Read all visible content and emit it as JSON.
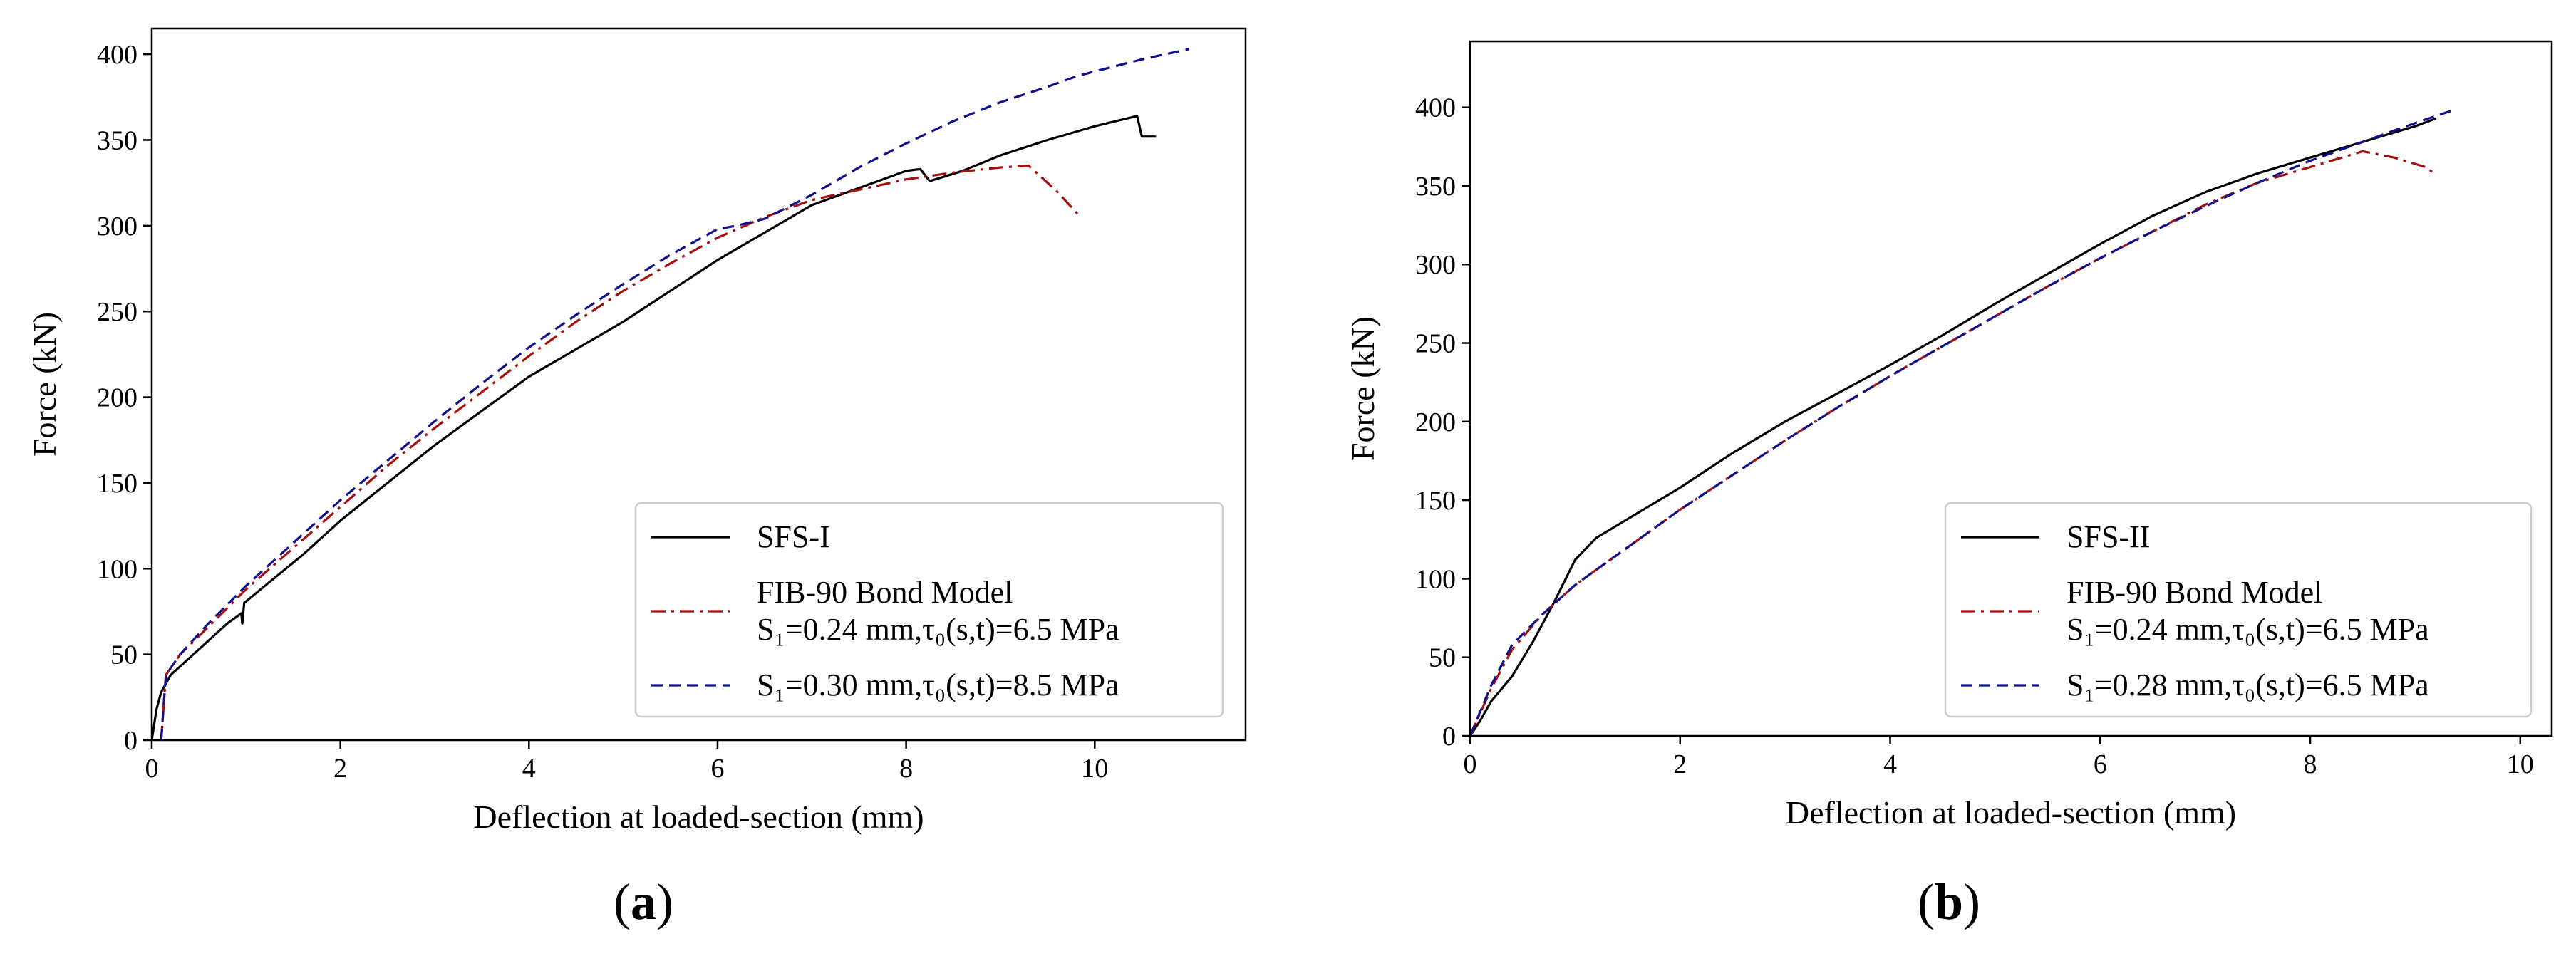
{
  "chart_data": [
    {
      "type": "line",
      "panel_label": "a",
      "xlabel": "Deflection at loaded-section (mm)",
      "ylabel": "Force (kN)",
      "xlim": [
        0,
        11.6
      ],
      "ylim": [
        0,
        415
      ],
      "xticks": [
        0,
        2,
        4,
        6,
        8,
        10
      ],
      "yticks": [
        0,
        50,
        100,
        150,
        200,
        250,
        300,
        350,
        400
      ],
      "legend_position": "lower-right",
      "series": [
        {
          "name": "SFS-I",
          "color": "#000000",
          "style": "solid",
          "points": [
            [
              0,
              0
            ],
            [
              0.05,
              18
            ],
            [
              0.1,
              28
            ],
            [
              0.2,
              38
            ],
            [
              0.4,
              48
            ],
            [
              0.6,
              58
            ],
            [
              0.8,
              68
            ],
            [
              0.95,
              74
            ],
            [
              0.96,
              68
            ],
            [
              0.98,
              80
            ],
            [
              1.2,
              90
            ],
            [
              1.6,
              108
            ],
            [
              2.0,
              128
            ],
            [
              2.5,
              150
            ],
            [
              3.0,
              172
            ],
            [
              3.5,
              192
            ],
            [
              4.0,
              212
            ],
            [
              4.5,
              228
            ],
            [
              5.0,
              244
            ],
            [
              5.5,
              262
            ],
            [
              6.0,
              280
            ],
            [
              6.5,
              296
            ],
            [
              7.0,
              312
            ],
            [
              7.5,
              322
            ],
            [
              8.0,
              332
            ],
            [
              8.15,
              333
            ],
            [
              8.25,
              326
            ],
            [
              8.6,
              332
            ],
            [
              9.0,
              341
            ],
            [
              9.5,
              350
            ],
            [
              10.0,
              358
            ],
            [
              10.45,
              364
            ],
            [
              10.5,
              352
            ],
            [
              10.65,
              352
            ]
          ]
        },
        {
          "name": "FIB-90 Bond Model S₁=0.24 mm,τ₀(s,t)=6.5 MPa",
          "color": "#a50f0f",
          "style": "dashdot",
          "points": [
            [
              0.1,
              0
            ],
            [
              0.15,
              38
            ],
            [
              0.3,
              50
            ],
            [
              0.6,
              66
            ],
            [
              1.0,
              88
            ],
            [
              1.5,
              112
            ],
            [
              2.0,
              136
            ],
            [
              2.5,
              160
            ],
            [
              3.0,
              182
            ],
            [
              3.5,
              203
            ],
            [
              4.0,
              224
            ],
            [
              4.5,
              244
            ],
            [
              5.0,
              262
            ],
            [
              5.5,
              278
            ],
            [
              6.0,
              293
            ],
            [
              6.5,
              305
            ],
            [
              7.0,
              315
            ],
            [
              7.5,
              321
            ],
            [
              8.0,
              327
            ],
            [
              8.5,
              331
            ],
            [
              9.0,
              334
            ],
            [
              9.3,
              335
            ],
            [
              9.6,
              320
            ],
            [
              9.85,
              305
            ]
          ]
        },
        {
          "name": "S₁=0.30 mm,τ₀(s,t)=8.5 MPa",
          "color": "#10108c",
          "style": "dashed",
          "points": [
            [
              0.1,
              0
            ],
            [
              0.15,
              38
            ],
            [
              0.3,
              50
            ],
            [
              0.6,
              68
            ],
            [
              1.0,
              90
            ],
            [
              1.5,
              115
            ],
            [
              2.0,
              140
            ],
            [
              2.5,
              163
            ],
            [
              3.0,
              186
            ],
            [
              3.5,
              208
            ],
            [
              4.0,
              229
            ],
            [
              4.5,
              248
            ],
            [
              5.0,
              266
            ],
            [
              5.5,
              283
            ],
            [
              6.0,
              298
            ],
            [
              6.2,
              300
            ],
            [
              6.5,
              304
            ],
            [
              7.0,
              318
            ],
            [
              7.5,
              334
            ],
            [
              8.0,
              348
            ],
            [
              8.5,
              361
            ],
            [
              9.0,
              372
            ],
            [
              9.5,
              381
            ],
            [
              9.8,
              387
            ],
            [
              10.0,
              390
            ],
            [
              10.5,
              397
            ],
            [
              11.0,
              403
            ]
          ]
        }
      ]
    },
    {
      "type": "line",
      "panel_label": "b",
      "xlabel": "Deflection at loaded-section (mm)",
      "ylabel": "Force (kN)",
      "xlim": [
        0,
        10.3
      ],
      "ylim": [
        0,
        442
      ],
      "xticks": [
        0,
        2,
        4,
        6,
        8,
        10
      ],
      "yticks": [
        0,
        50,
        100,
        150,
        200,
        250,
        300,
        350,
        400
      ],
      "legend_position": "lower-right",
      "series": [
        {
          "name": "SFS-II",
          "color": "#000000",
          "style": "solid",
          "points": [
            [
              0,
              0
            ],
            [
              0.1,
              10
            ],
            [
              0.2,
              22
            ],
            [
              0.4,
              38
            ],
            [
              0.6,
              60
            ],
            [
              0.8,
              85
            ],
            [
              1.0,
              112
            ],
            [
              1.2,
              126
            ],
            [
              1.5,
              138
            ],
            [
              2.0,
              158
            ],
            [
              2.5,
              180
            ],
            [
              3.0,
              200
            ],
            [
              3.5,
              218
            ],
            [
              4.0,
              236
            ],
            [
              4.5,
              255
            ],
            [
              5.0,
              275
            ],
            [
              5.5,
              294
            ],
            [
              6.0,
              313
            ],
            [
              6.5,
              331
            ],
            [
              7.0,
              346
            ],
            [
              7.5,
              358
            ],
            [
              8.0,
              368
            ],
            [
              8.5,
              378
            ],
            [
              9.0,
              388
            ],
            [
              9.2,
              393
            ]
          ]
        },
        {
          "name": "FIB-90 Bond Model S₁=0.24 mm,τ₀(s,t)=6.5 MPa",
          "color": "#a50f0f",
          "style": "dashdot",
          "points": [
            [
              0,
              0
            ],
            [
              0.2,
              30
            ],
            [
              0.4,
              55
            ],
            [
              0.7,
              78
            ],
            [
              1.0,
              96
            ],
            [
              1.5,
              120
            ],
            [
              2.0,
              144
            ],
            [
              2.5,
              166
            ],
            [
              3.0,
              188
            ],
            [
              3.5,
              209
            ],
            [
              4.0,
              229
            ],
            [
              4.5,
              248
            ],
            [
              5.0,
              267
            ],
            [
              5.5,
              286
            ],
            [
              6.0,
              304
            ],
            [
              6.5,
              321
            ],
            [
              7.0,
              338
            ],
            [
              7.5,
              352
            ],
            [
              8.0,
              362
            ],
            [
              8.5,
              372
            ],
            [
              8.8,
              368
            ],
            [
              9.1,
              362
            ],
            [
              9.2,
              357
            ]
          ]
        },
        {
          "name": "S₁=0.28 mm,τ₀(s,t)=6.5 MPa",
          "color": "#10108c",
          "style": "dashed",
          "points": [
            [
              0,
              0
            ],
            [
              0.2,
              32
            ],
            [
              0.4,
              58
            ],
            [
              0.7,
              78
            ],
            [
              1.0,
              96
            ],
            [
              1.5,
              120
            ],
            [
              2.0,
              144
            ],
            [
              2.5,
              166
            ],
            [
              3.0,
              188
            ],
            [
              3.5,
              209
            ],
            [
              4.0,
              229
            ],
            [
              4.5,
              248
            ],
            [
              5.0,
              267
            ],
            [
              5.5,
              286
            ],
            [
              6.0,
              304
            ],
            [
              6.5,
              321
            ],
            [
              7.0,
              337
            ],
            [
              7.5,
              352
            ],
            [
              8.0,
              366
            ],
            [
              8.5,
              378
            ],
            [
              9.0,
              390
            ],
            [
              9.35,
              398
            ]
          ]
        }
      ]
    }
  ]
}
